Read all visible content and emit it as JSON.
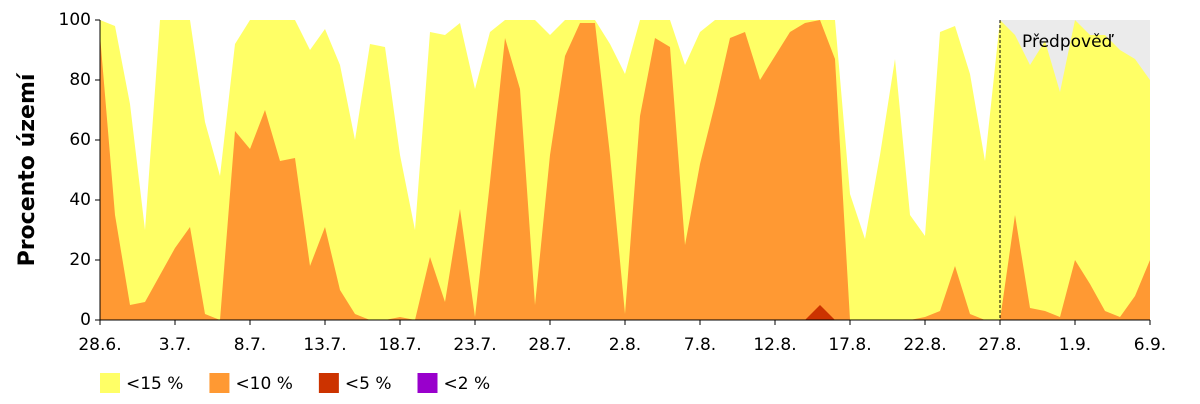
{
  "chart_data": {
    "type": "area",
    "y_label": "Procento území",
    "forecast_label": "Předpověď",
    "forecast_from": "27.8.",
    "categories": [
      "28.6.",
      null,
      null,
      null,
      null,
      "3.7.",
      null,
      null,
      null,
      null,
      "8.7.",
      null,
      null,
      null,
      null,
      "13.7.",
      null,
      null,
      null,
      null,
      "18.7.",
      null,
      null,
      null,
      null,
      "23.7.",
      null,
      null,
      null,
      null,
      "28.7.",
      null,
      null,
      null,
      null,
      "2.8.",
      null,
      null,
      null,
      null,
      "7.8.",
      null,
      null,
      null,
      null,
      "12.8.",
      null,
      null,
      null,
      null,
      "17.8.",
      null,
      null,
      null,
      null,
      "22.8.",
      null,
      null,
      null,
      null,
      "27.8.",
      null,
      null,
      null,
      null,
      "1.9.",
      null,
      null,
      null,
      null,
      "6.9."
    ],
    "series": [
      {
        "name": "<15 %",
        "color": "#ffff66",
        "values": [
          100,
          98,
          72,
          30,
          100,
          100,
          100,
          66,
          48,
          92,
          100,
          100,
          100,
          100,
          90,
          97,
          85,
          60,
          92,
          91,
          55,
          30,
          96,
          95,
          99,
          77,
          96,
          100,
          100,
          100,
          95,
          100,
          100,
          100,
          92,
          82,
          100,
          100,
          100,
          85,
          96,
          100,
          100,
          100,
          100,
          100,
          100,
          100,
          100,
          100,
          42,
          27,
          55,
          87,
          35,
          28,
          96,
          98,
          82,
          53,
          100,
          95,
          85,
          93,
          76,
          100,
          95,
          95,
          90,
          87,
          80
        ]
      },
      {
        "name": "<10 %",
        "color": "#ff9933",
        "values": [
          95,
          35,
          5,
          6,
          15,
          24,
          31,
          2,
          0,
          63,
          57,
          70,
          53,
          54,
          18,
          31,
          10,
          2,
          0,
          0,
          1,
          0,
          21,
          6,
          37,
          1,
          46,
          94,
          77,
          5,
          55,
          88,
          99,
          99,
          55,
          2,
          68,
          94,
          91,
          25,
          52,
          72,
          94,
          96,
          80,
          88,
          96,
          99,
          100,
          87,
          0,
          0,
          0,
          0,
          0,
          1,
          3,
          18,
          2,
          0,
          0,
          35,
          4,
          3,
          1,
          20,
          12,
          3,
          1,
          8,
          20
        ]
      },
      {
        "name": "<5 %",
        "color": "#cc3300",
        "values": [
          0,
          0,
          0,
          0,
          0,
          0,
          0,
          0,
          0,
          0,
          0,
          0,
          0,
          0,
          0,
          0,
          0,
          0,
          0,
          0,
          0,
          0,
          0,
          0,
          0,
          0,
          0,
          0,
          0,
          0,
          0,
          0,
          0,
          0,
          0,
          0,
          0,
          0,
          0,
          0,
          0,
          0,
          0,
          0,
          0,
          0,
          0,
          0,
          5,
          0,
          0,
          0,
          0,
          0,
          0,
          0,
          0,
          0,
          0,
          0,
          0,
          0,
          0,
          0,
          0,
          0,
          0,
          0,
          0,
          0,
          0
        ]
      },
      {
        "name": "<2 %",
        "color": "#9900cc",
        "values": [
          0,
          0,
          0,
          0,
          0,
          0,
          0,
          0,
          0,
          0,
          0,
          0,
          0,
          0,
          0,
          0,
          0,
          0,
          0,
          0,
          0,
          0,
          0,
          0,
          0,
          0,
          0,
          0,
          0,
          0,
          0,
          0,
          0,
          0,
          0,
          0,
          0,
          0,
          0,
          0,
          0,
          0,
          0,
          0,
          0,
          0,
          0,
          0,
          0,
          0,
          0,
          0,
          0,
          0,
          0,
          0,
          0,
          0,
          0,
          0,
          0,
          0,
          0,
          0,
          0,
          0,
          0,
          0,
          0,
          0,
          0
        ]
      }
    ],
    "ylim": [
      0,
      100
    ],
    "yticks": [
      0,
      20,
      40,
      60,
      80,
      100
    ]
  }
}
